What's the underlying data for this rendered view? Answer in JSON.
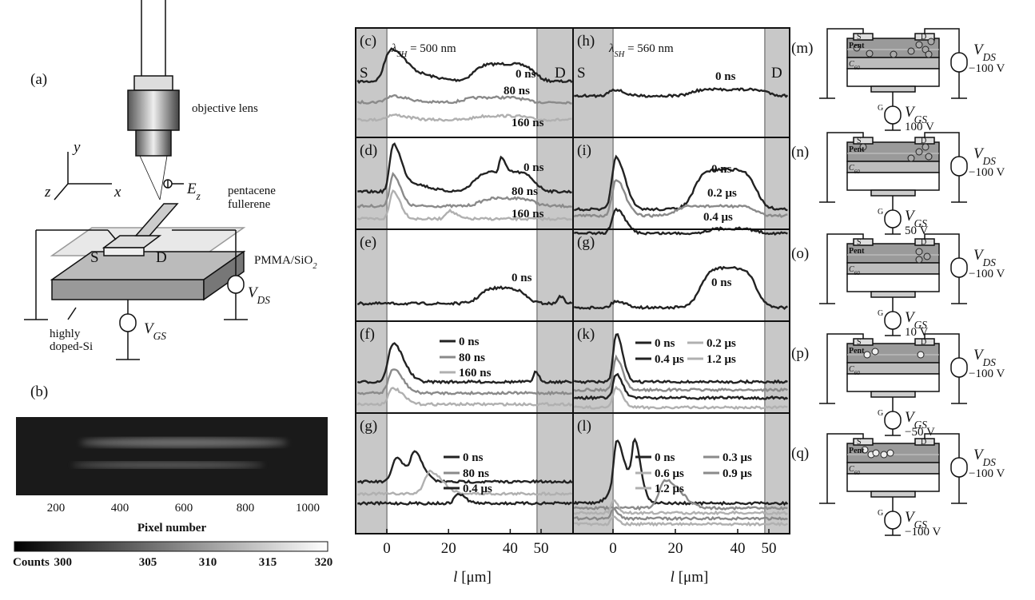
{
  "panel_a": {
    "label": "(a)",
    "objective": "objective lens",
    "axis_y": "y",
    "axis_z": "z",
    "axis_x": "x",
    "field": {
      "base": "E",
      "sub": "z"
    },
    "pentacene": "pentacene",
    "fullerene": "fullerene",
    "substrate": {
      "base": "PMMA/SiO",
      "sub": "2"
    },
    "source": "S",
    "drain": "D",
    "vds": {
      "base": "V",
      "sub": "DS"
    },
    "vgs": {
      "base": "V",
      "sub": "GS"
    },
    "silicon": [
      "highly",
      "doped-Si"
    ]
  },
  "panel_b": {
    "label": "(b)",
    "xticks": [
      200,
      400,
      600,
      800,
      1000
    ],
    "xlabel": "Pixel number",
    "colorbar_title": "Counts",
    "colorbar_ticks": [
      300,
      305,
      310,
      315,
      320
    ]
  },
  "columns": [
    {
      "wavelength": {
        "base": "λ",
        "sub": "SH",
        "rest": " = 500 nm"
      },
      "source": "S",
      "drain": "D",
      "xticks": [
        0,
        20,
        40,
        50
      ],
      "xlabel": {
        "base": "l",
        "rest": " [μm]"
      },
      "panels": [
        {
          "label": "(c)",
          "labels": [
            "0 ns",
            "80 ns",
            "160 ns"
          ]
        },
        {
          "label": "(d)",
          "labels": [
            "0 ns",
            "80 ns",
            "160 ns"
          ]
        },
        {
          "label": "(e)",
          "labels": [
            "0 ns"
          ]
        },
        {
          "label": "(f)",
          "legend": [
            "0 ns",
            "80 ns",
            "160 ns"
          ]
        },
        {
          "label": "(g)",
          "legend": [
            "0 ns",
            "80 ns",
            "0.4 μs"
          ]
        }
      ]
    },
    {
      "wavelength": {
        "base": "λ",
        "sub": "SH",
        "rest": " = 560 nm"
      },
      "source": "S",
      "drain": "D",
      "xticks": [
        0,
        20,
        40,
        50
      ],
      "xlabel": {
        "base": "l",
        "rest": " [μm]"
      },
      "panels": [
        {
          "label": "(h)",
          "labels": [
            "0 ns"
          ]
        },
        {
          "label": "(i)",
          "labels": [
            "0 ns",
            "0.2 μs",
            "0.4 μs"
          ]
        },
        {
          "label": "(g)",
          "labels": [
            "0 ns"
          ]
        },
        {
          "label": "(k)",
          "legend": [
            "0 ns",
            "0.2 μs",
            "0.4 μs",
            "1.2 μs"
          ]
        },
        {
          "label": "(l)",
          "legend": [
            "0 ns",
            "0.3 μs",
            "0.6 μs",
            "0.9 μs",
            "1.2 μs"
          ]
        }
      ]
    }
  ],
  "circuit": {
    "pent": "Pent",
    "c60": {
      "base": "C",
      "sub": "60"
    },
    "source": "S",
    "drain": "D",
    "gate": "G",
    "vds": {
      "base": "V",
      "sub": "DS"
    },
    "vgs": {
      "base": "V",
      "sub": "GS"
    }
  },
  "circuits": [
    {
      "label": "(m)",
      "vds_value": "−100 V",
      "vgs_value": "100 V"
    },
    {
      "label": "(n)",
      "vds_value": "−100 V",
      "vgs_value": "50 V"
    },
    {
      "label": "(o)",
      "vds_value": "−100 V",
      "vgs_value": "10 V"
    },
    {
      "label": "(p)",
      "vds_value": "−100 V",
      "vgs_value": "−50 V"
    },
    {
      "label": "(q)",
      "vds_value": "−100 V",
      "vgs_value": "−100 V"
    }
  ]
}
